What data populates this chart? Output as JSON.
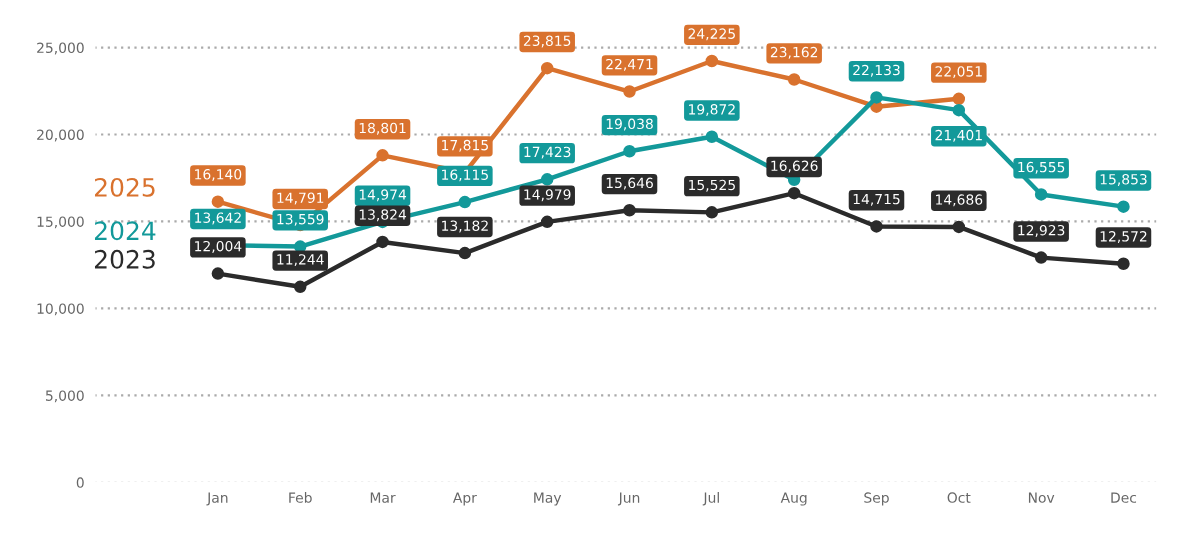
{
  "chart_data": {
    "type": "line",
    "categories": [
      "Jan",
      "Feb",
      "Mar",
      "Apr",
      "May",
      "Jun",
      "Jul",
      "Aug",
      "Sep",
      "Oct",
      "Nov",
      "Dec"
    ],
    "series": [
      {
        "name": "2025",
        "color": "#d9722e",
        "values": [
          16140,
          14791,
          18801,
          17815,
          23815,
          22471,
          24225,
          23162,
          21600,
          22051,
          null,
          null
        ],
        "value_labels": [
          "16,140",
          "14,791",
          "18,801",
          "17,815",
          "23,815",
          "22,471",
          "24,225",
          "23,162",
          null,
          "22,051",
          null,
          null
        ]
      },
      {
        "name": "2024",
        "color": "#13999a",
        "values": [
          13642,
          13559,
          14974,
          16115,
          17423,
          19038,
          19872,
          17400,
          22133,
          21401,
          16555,
          15853
        ],
        "value_labels": [
          "13,642",
          "13,559",
          "14,974",
          "16,115",
          "17,423",
          "19,038",
          "19,872",
          null,
          "22,133",
          "21,401",
          "16,555",
          "15,853"
        ]
      },
      {
        "name": "2023",
        "color": "#2b2b2b",
        "values": [
          12004,
          11244,
          13824,
          13182,
          14979,
          15646,
          15525,
          16626,
          14715,
          14686,
          12923,
          12572
        ],
        "value_labels": [
          "12,004",
          "11,244",
          "13,824",
          "13,182",
          "14,979",
          "15,646",
          "15,525",
          "16,626",
          "14,715",
          "14,686",
          "12,923",
          "12,572"
        ]
      }
    ],
    "ylim": [
      0,
      26500
    ],
    "yticks": [
      {
        "value": 0,
        "label": "0"
      },
      {
        "value": 5000,
        "label": "5,000"
      },
      {
        "value": 10000,
        "label": "10,000"
      },
      {
        "value": 15000,
        "label": "15,000"
      },
      {
        "value": 20000,
        "label": "20,000"
      },
      {
        "value": 25000,
        "label": "25,000"
      }
    ],
    "grid": "y",
    "marker": "circle",
    "legend": "left",
    "line_style": "solid"
  }
}
